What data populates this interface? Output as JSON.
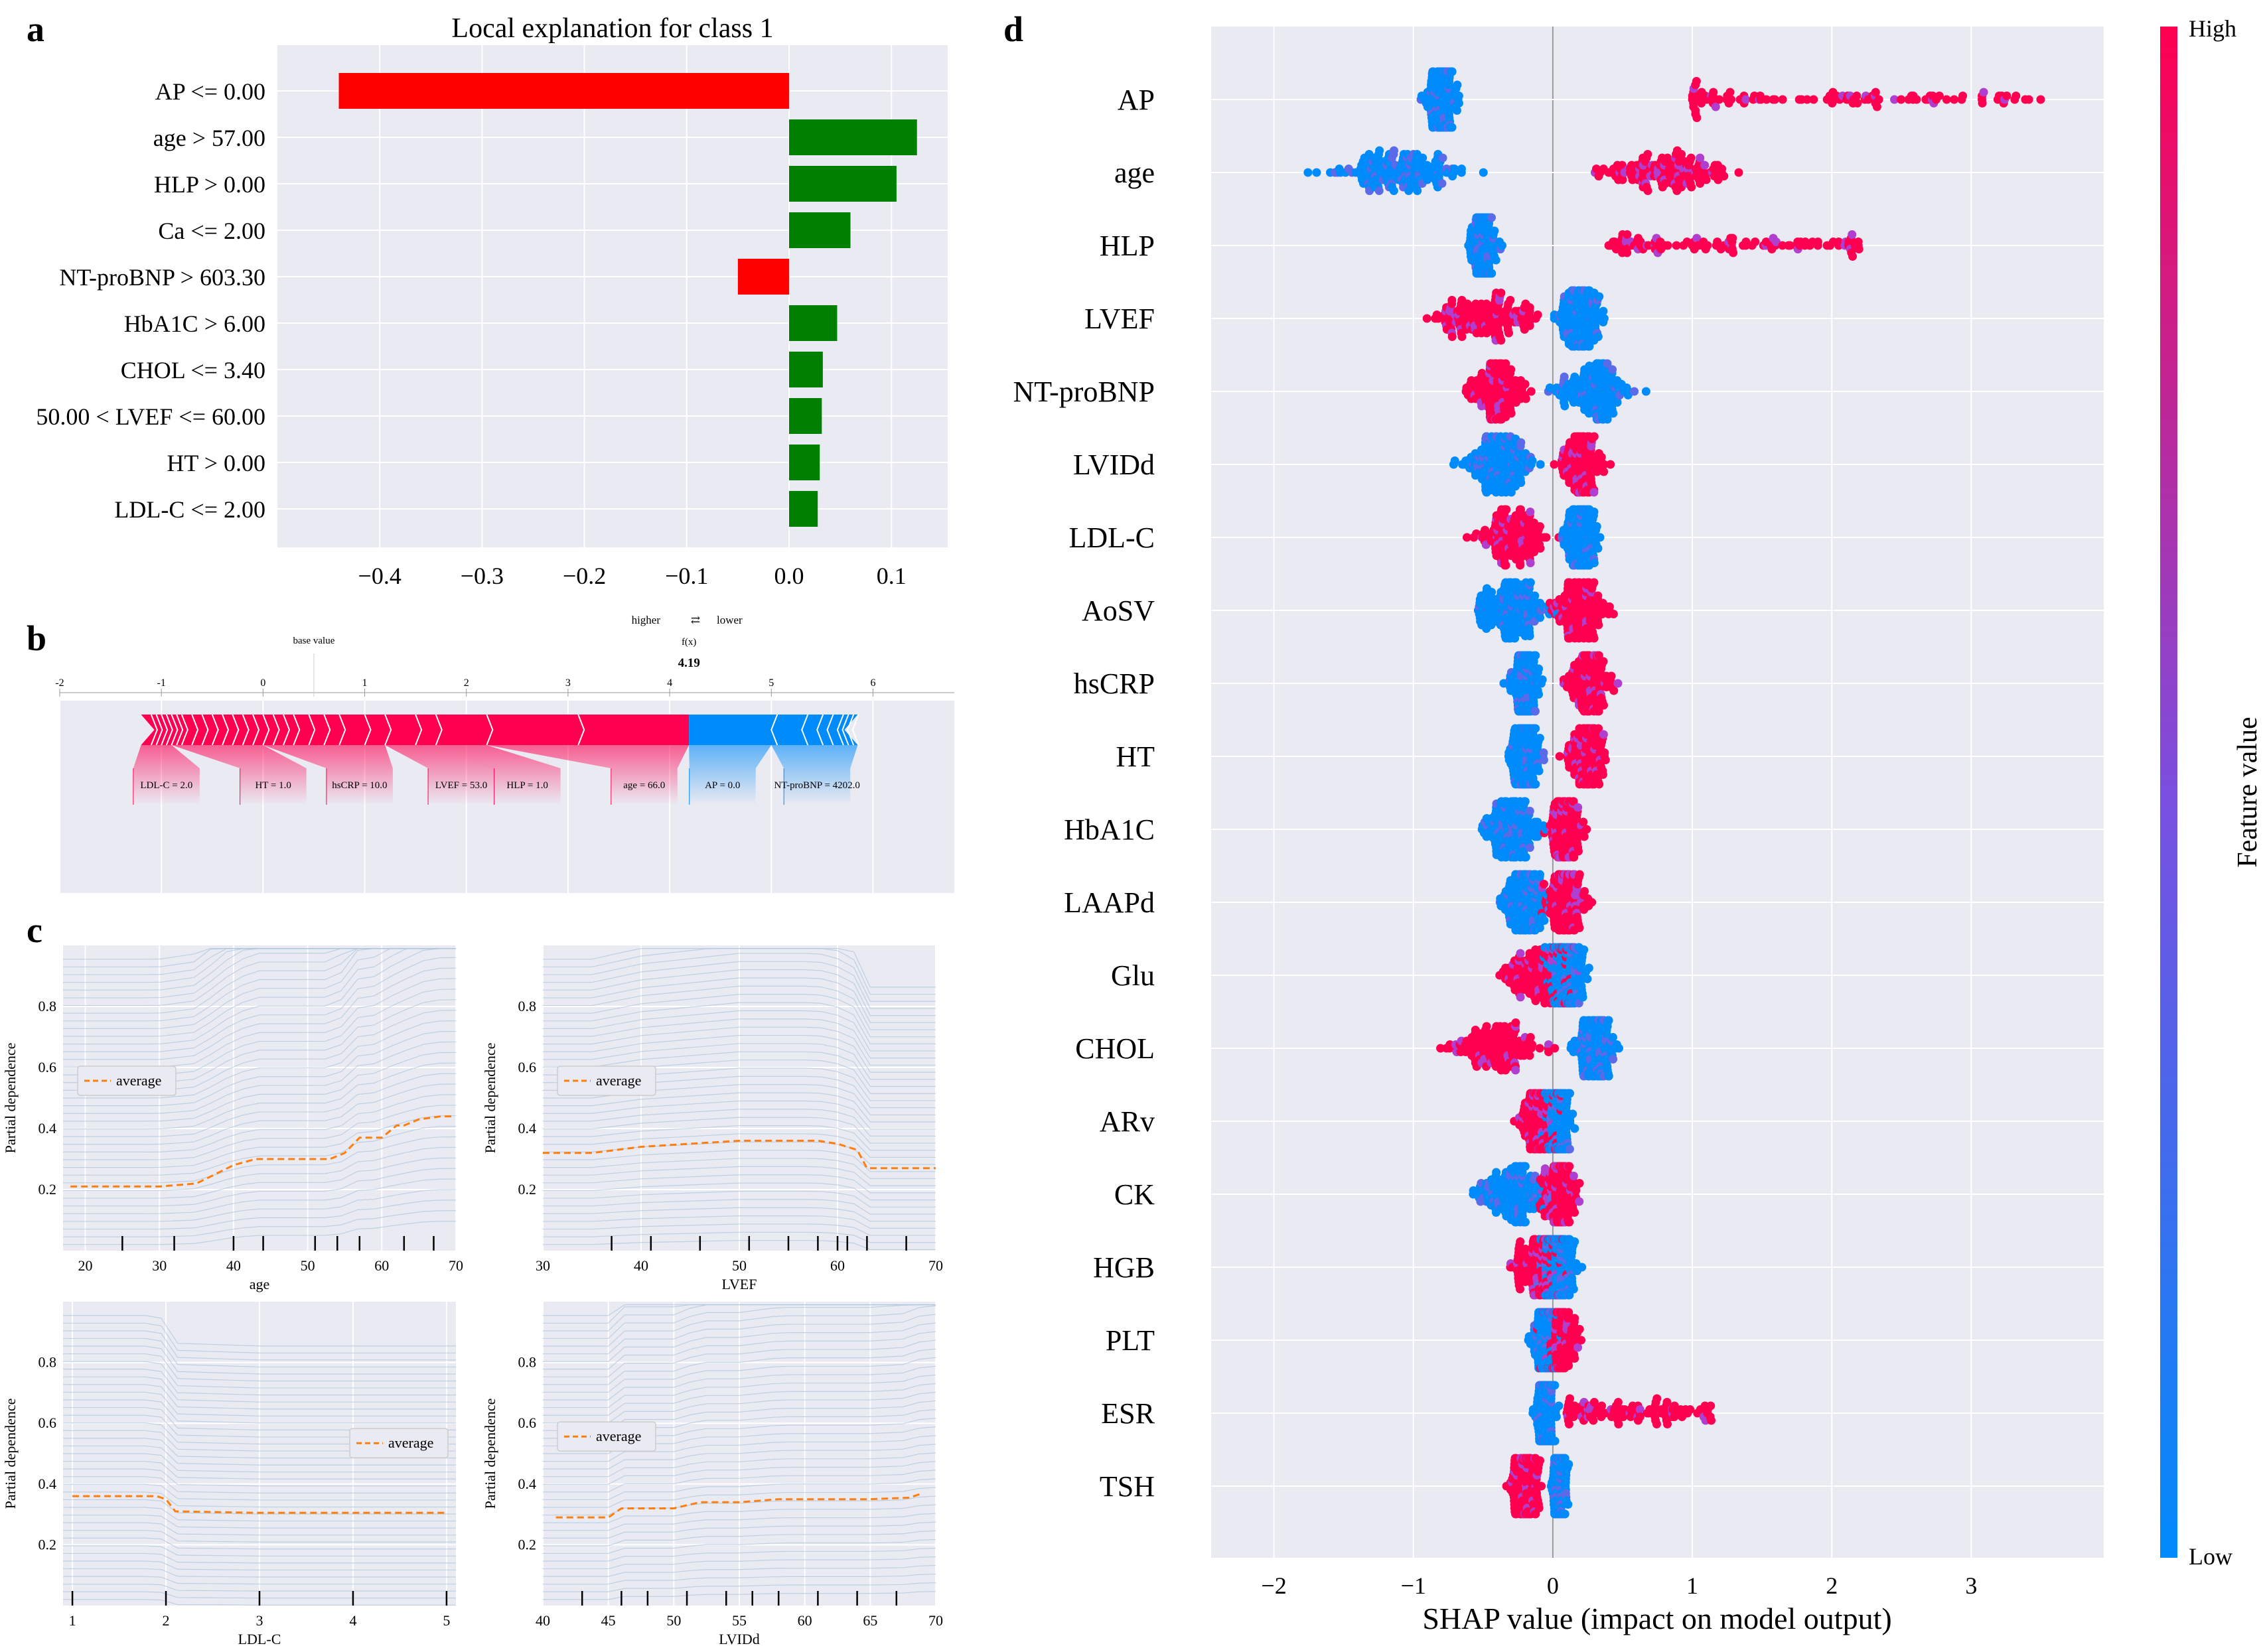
{
  "panel_labels": {
    "a": "a",
    "b": "b",
    "c": "c",
    "d": "d"
  },
  "colors": {
    "plot_bg": "#eaeaf2",
    "grid": "#ffffff",
    "red": "#ff0000",
    "green": "#008000",
    "shap_pink": "#ff0051",
    "shap_blue": "#008bfb",
    "pdp_line": "#a9c4dc",
    "pdp_avg": "#ff7f0e"
  },
  "chart_data": [
    {
      "id": "a",
      "type": "bar",
      "orientation": "horizontal",
      "title": "Local explanation for class 1",
      "categories": [
        "AP <= 0.00",
        "age > 57.00",
        "HLP > 0.00",
        "Ca <= 2.00",
        "NT-proBNP > 603.30",
        "HbA1C > 6.00",
        "CHOL <= 3.40",
        "50.00 < LVEF <= 60.00",
        "HT > 0.00",
        "LDL-C <= 2.00"
      ],
      "values": [
        -0.44,
        0.125,
        0.105,
        0.06,
        -0.05,
        0.047,
        0.033,
        0.032,
        0.03,
        0.028
      ],
      "xlim": [
        -0.5,
        0.155
      ],
      "xticks": [
        -0.4,
        -0.3,
        -0.2,
        -0.1,
        0.0,
        0.1
      ],
      "xtick_labels": [
        "−0.4",
        "−0.3",
        "−0.2",
        "−0.1",
        "0.0",
        "0.1"
      ]
    },
    {
      "id": "b",
      "type": "force",
      "base_value_label": "base value",
      "fx_label": "f(x)",
      "fx_value": 4.19,
      "fx_text": "4.19",
      "higher_label": "higher",
      "lower_label": "lower",
      "arrows": "⇄",
      "xlim": [
        -2,
        6.8
      ],
      "xticks": [
        -2,
        -1,
        0,
        1,
        2,
        3,
        4,
        5,
        6
      ],
      "xtick_labels": [
        "-2",
        "-1",
        "0",
        "1",
        "2",
        "3",
        "4",
        "5",
        "6"
      ],
      "base_value": 0.5,
      "positive_start": -1.2,
      "negative_end": 5.85,
      "features": [
        {
          "label": "LDL-C = 2.0",
          "effect": "positive"
        },
        {
          "label": "HT = 1.0",
          "effect": "positive"
        },
        {
          "label": "hsCRP = 10.0",
          "effect": "positive"
        },
        {
          "label": "LVEF = 53.0",
          "effect": "positive"
        },
        {
          "label": "HLP = 1.0",
          "effect": "positive"
        },
        {
          "label": "age = 66.0",
          "effect": "positive"
        },
        {
          "label": "AP = 0.0",
          "effect": "negative"
        },
        {
          "label": "NT-proBNP = 4202.0",
          "effect": "negative"
        }
      ]
    },
    {
      "id": "c1",
      "type": "line",
      "xlabel": "age",
      "ylabel": "Partial dependence",
      "legend": "average",
      "legend_position": "left",
      "xlim": [
        17,
        70
      ],
      "ylim": [
        0,
        1
      ],
      "xticks": [
        20,
        30,
        40,
        50,
        60,
        70
      ],
      "yticks": [
        0.2,
        0.4,
        0.6,
        0.8
      ],
      "average": {
        "x": [
          18,
          30,
          35,
          40,
          43,
          53,
          55,
          57,
          58,
          60,
          62,
          63,
          65,
          68,
          69.5
        ],
        "y": [
          0.21,
          0.21,
          0.22,
          0.28,
          0.3,
          0.3,
          0.32,
          0.37,
          0.37,
          0.37,
          0.41,
          0.41,
          0.43,
          0.44,
          0.44
        ]
      },
      "rug": [
        25,
        32,
        40,
        44,
        51,
        54,
        57,
        63,
        67
      ]
    },
    {
      "id": "c2",
      "type": "line",
      "xlabel": "LVEF",
      "ylabel": "Partial dependence",
      "legend": "average",
      "legend_position": "left",
      "xlim": [
        30,
        70
      ],
      "ylim": [
        0,
        1
      ],
      "xticks": [
        30,
        40,
        50,
        60,
        70
      ],
      "yticks": [
        0.2,
        0.4,
        0.6,
        0.8
      ],
      "average": {
        "x": [
          30,
          35,
          40,
          45,
          50,
          55,
          58,
          60,
          62,
          63,
          65,
          70
        ],
        "y": [
          0.32,
          0.32,
          0.34,
          0.35,
          0.36,
          0.36,
          0.36,
          0.35,
          0.33,
          0.27,
          0.27,
          0.27
        ]
      },
      "rug": [
        37,
        41,
        46,
        51,
        55,
        58,
        60,
        61,
        63,
        67
      ]
    },
    {
      "id": "c3",
      "type": "line",
      "xlabel": "LDL-C",
      "ylabel": "Partial dependence",
      "legend": "average",
      "legend_position": "right",
      "xlim": [
        0.9,
        5.1
      ],
      "ylim": [
        0,
        1
      ],
      "xticks": [
        1,
        2,
        3,
        4,
        5
      ],
      "yticks": [
        0.2,
        0.4,
        0.6,
        0.8
      ],
      "average": {
        "x": [
          1,
          1.9,
          2.0,
          2.1,
          3,
          4,
          5
        ],
        "y": [
          0.36,
          0.36,
          0.35,
          0.31,
          0.305,
          0.305,
          0.305
        ]
      },
      "rug": [
        1,
        2,
        3,
        4,
        5
      ]
    },
    {
      "id": "c4",
      "type": "line",
      "xlabel": "LVIDd",
      "ylabel": "Partial dependence",
      "legend": "average",
      "legend_position": "left",
      "xlim": [
        40,
        70
      ],
      "ylim": [
        0,
        1
      ],
      "xticks": [
        40,
        45,
        50,
        55,
        60,
        65,
        70
      ],
      "yticks": [
        0.2,
        0.4,
        0.6,
        0.8
      ],
      "average": {
        "x": [
          41,
          45,
          46,
          50,
          52,
          55,
          58,
          60,
          65,
          68,
          69
        ],
        "y": [
          0.29,
          0.29,
          0.32,
          0.32,
          0.34,
          0.34,
          0.35,
          0.35,
          0.35,
          0.355,
          0.37
        ]
      },
      "rug": [
        43,
        46,
        48,
        51,
        54,
        56,
        58,
        61,
        64,
        67
      ]
    },
    {
      "id": "d",
      "type": "scatter",
      "subtype": "beeswarm",
      "xlabel": "SHAP value (impact on model output)",
      "xlim": [
        -2.45,
        3.95
      ],
      "xticks": [
        -2,
        -1,
        0,
        1,
        2,
        3
      ],
      "xtick_labels": [
        "−2",
        "−1",
        "0",
        "1",
        "2",
        "3"
      ],
      "colorbar_label": "Feature value",
      "colorbar_high": "High",
      "colorbar_low": "Low",
      "features": [
        {
          "name": "AP",
          "low_center": -0.8,
          "low_spread": 0.22,
          "high_min": 1.0,
          "high_max": 3.6
        },
        {
          "name": "age",
          "low_center": -1.1,
          "low_spread": 0.9,
          "high_center": 0.8,
          "high_spread": 0.9
        },
        {
          "name": "HLP",
          "low_center": -0.5,
          "low_spread": 0.2,
          "high_min": 0.4,
          "high_max": 2.2
        },
        {
          "name": "LVEF",
          "low_center": 0.2,
          "low_spread": 0.3,
          "high_center": -0.5,
          "high_spread": 0.8
        },
        {
          "name": "NT-proBNP",
          "low_center": 0.3,
          "low_spread": 0.5,
          "high_center": -0.4,
          "high_spread": 0.4
        },
        {
          "name": "LVIDd",
          "low_center": -0.4,
          "low_spread": 0.5,
          "high_center": 0.2,
          "high_spread": 0.3
        },
        {
          "name": "LDL-C",
          "low_center": 0.2,
          "low_spread": 0.25,
          "high_center": -0.3,
          "high_spread": 0.5
        },
        {
          "name": "AoSV",
          "low_center": -0.3,
          "low_spread": 0.5,
          "high_center": 0.2,
          "high_spread": 0.4
        },
        {
          "name": "hsCRP",
          "low_center": -0.2,
          "low_spread": 0.2,
          "high_center": 0.25,
          "high_spread": 0.3
        },
        {
          "name": "HT",
          "low_center": -0.2,
          "low_spread": 0.2,
          "high_center": 0.25,
          "high_spread": 0.3
        },
        {
          "name": "HbA1C",
          "low_center": -0.3,
          "low_spread": 0.4,
          "high_center": 0.1,
          "high_spread": 0.25
        },
        {
          "name": "LAAPd",
          "low_center": -0.2,
          "low_spread": 0.3,
          "high_center": 0.1,
          "high_spread": 0.3
        },
        {
          "name": "Glu",
          "low_center": 0.1,
          "low_spread": 0.25,
          "high_center": -0.1,
          "high_spread": 0.5
        },
        {
          "name": "CHOL",
          "low_center": 0.3,
          "low_spread": 0.3,
          "high_center": -0.4,
          "high_spread": 0.6
        },
        {
          "name": "ARv",
          "low_center": 0.05,
          "low_spread": 0.2,
          "high_center": -0.1,
          "high_spread": 0.3
        },
        {
          "name": "CK",
          "low_center": -0.3,
          "low_spread": 0.5,
          "high_center": 0.05,
          "high_spread": 0.25
        },
        {
          "name": "HGB",
          "low_center": 0.05,
          "low_spread": 0.25,
          "high_center": -0.1,
          "high_spread": 0.35
        },
        {
          "name": "PLT",
          "low_center": -0.05,
          "low_spread": 0.2,
          "high_center": 0.05,
          "high_spread": 0.25
        },
        {
          "name": "ESR",
          "low_center": -0.05,
          "low_spread": 0.15,
          "high_min": 0.1,
          "high_max": 1.15
        },
        {
          "name": "TSH",
          "low_center": 0.05,
          "low_spread": 0.1,
          "high_center": -0.2,
          "high_spread": 0.2
        }
      ]
    }
  ]
}
